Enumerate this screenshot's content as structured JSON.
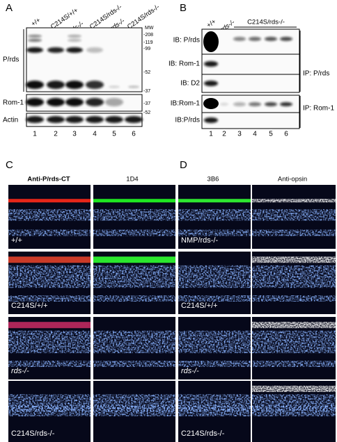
{
  "panel_a": {
    "label": "A",
    "lane_headers": [
      "+/+",
      "C214S/+/+",
      "rds-/-",
      "C214S/rds-/-",
      "rds-/-",
      "C214S/rds-/-"
    ],
    "mw_title": "MW",
    "mw_markers": [
      "-208",
      "-119",
      "-99",
      "-52",
      "-37"
    ],
    "rom1_marker": "-37",
    "actin_marker": "-52",
    "row_labels": [
      "P/rds",
      "Rom-1",
      "Actin"
    ],
    "lane_numbers": [
      "1",
      "2",
      "3",
      "4",
      "5",
      "6"
    ]
  },
  "panel_b": {
    "label": "B",
    "lane_headers": [
      "+/+",
      "rds-/-"
    ],
    "group_header": "C214S/rds-/-",
    "row_labels": [
      "IB: P/rds",
      "IB: Rom-1",
      "IB: D2",
      "IB:Rom-1",
      "IB:P/rds"
    ],
    "ip_labels": [
      "IP: P/rds",
      "IP: Rom-1"
    ],
    "lane_numbers": [
      "1",
      "2",
      "3",
      "4",
      "5",
      "6"
    ]
  },
  "panel_c": {
    "label": "C",
    "column_headers": [
      "Anti-P/rds-CT",
      "1D4"
    ],
    "row_labels": [
      "+/+",
      "C214S/+/+",
      "rds-/-",
      "C214S/rds-/-"
    ]
  },
  "panel_d": {
    "label": "D",
    "column_headers": [
      "3B6",
      "Anti-opsin"
    ],
    "row_labels": [
      "NMP/rds-/-",
      "C214S/+/+",
      "rds-/-",
      "C214S/rds-/-"
    ]
  }
}
